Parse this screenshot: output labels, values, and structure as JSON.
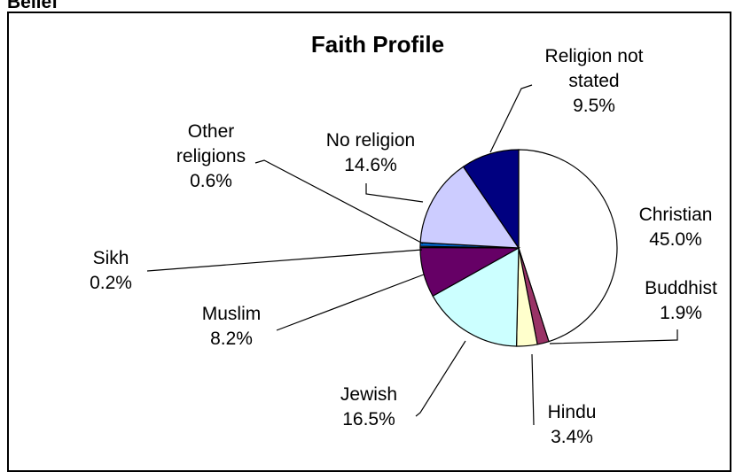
{
  "header": {
    "cut_label": "Belief"
  },
  "chart_data": {
    "type": "pie",
    "title": "Faith Profile",
    "slices": [
      {
        "label": "Christian",
        "value": 45.0,
        "display": "45.0%",
        "color": "#ffffff"
      },
      {
        "label": "Buddhist",
        "value": 1.9,
        "display": "1.9%",
        "color": "#993366"
      },
      {
        "label": "Hindu",
        "value": 3.4,
        "display": "3.4%",
        "color": "#ffffcc"
      },
      {
        "label": "Jewish",
        "value": 16.5,
        "display": "16.5%",
        "color": "#ccffff"
      },
      {
        "label": "Muslim",
        "value": 8.2,
        "display": "8.2%",
        "color": "#660066"
      },
      {
        "label": "Sikh",
        "value": 0.2,
        "display": "0.2%",
        "color": "#ff8080"
      },
      {
        "label": "Other religions",
        "value": 0.6,
        "display": "0.6%",
        "color": "#0066cc"
      },
      {
        "label": "No religion",
        "value": 14.6,
        "display": "14.6%",
        "color": "#ccccff"
      },
      {
        "label": "Religion not stated",
        "value": 9.5,
        "display": "9.5%",
        "color": "#000080"
      }
    ],
    "start_angle": "12 o'clock",
    "direction": "clockwise",
    "legend": "none"
  }
}
